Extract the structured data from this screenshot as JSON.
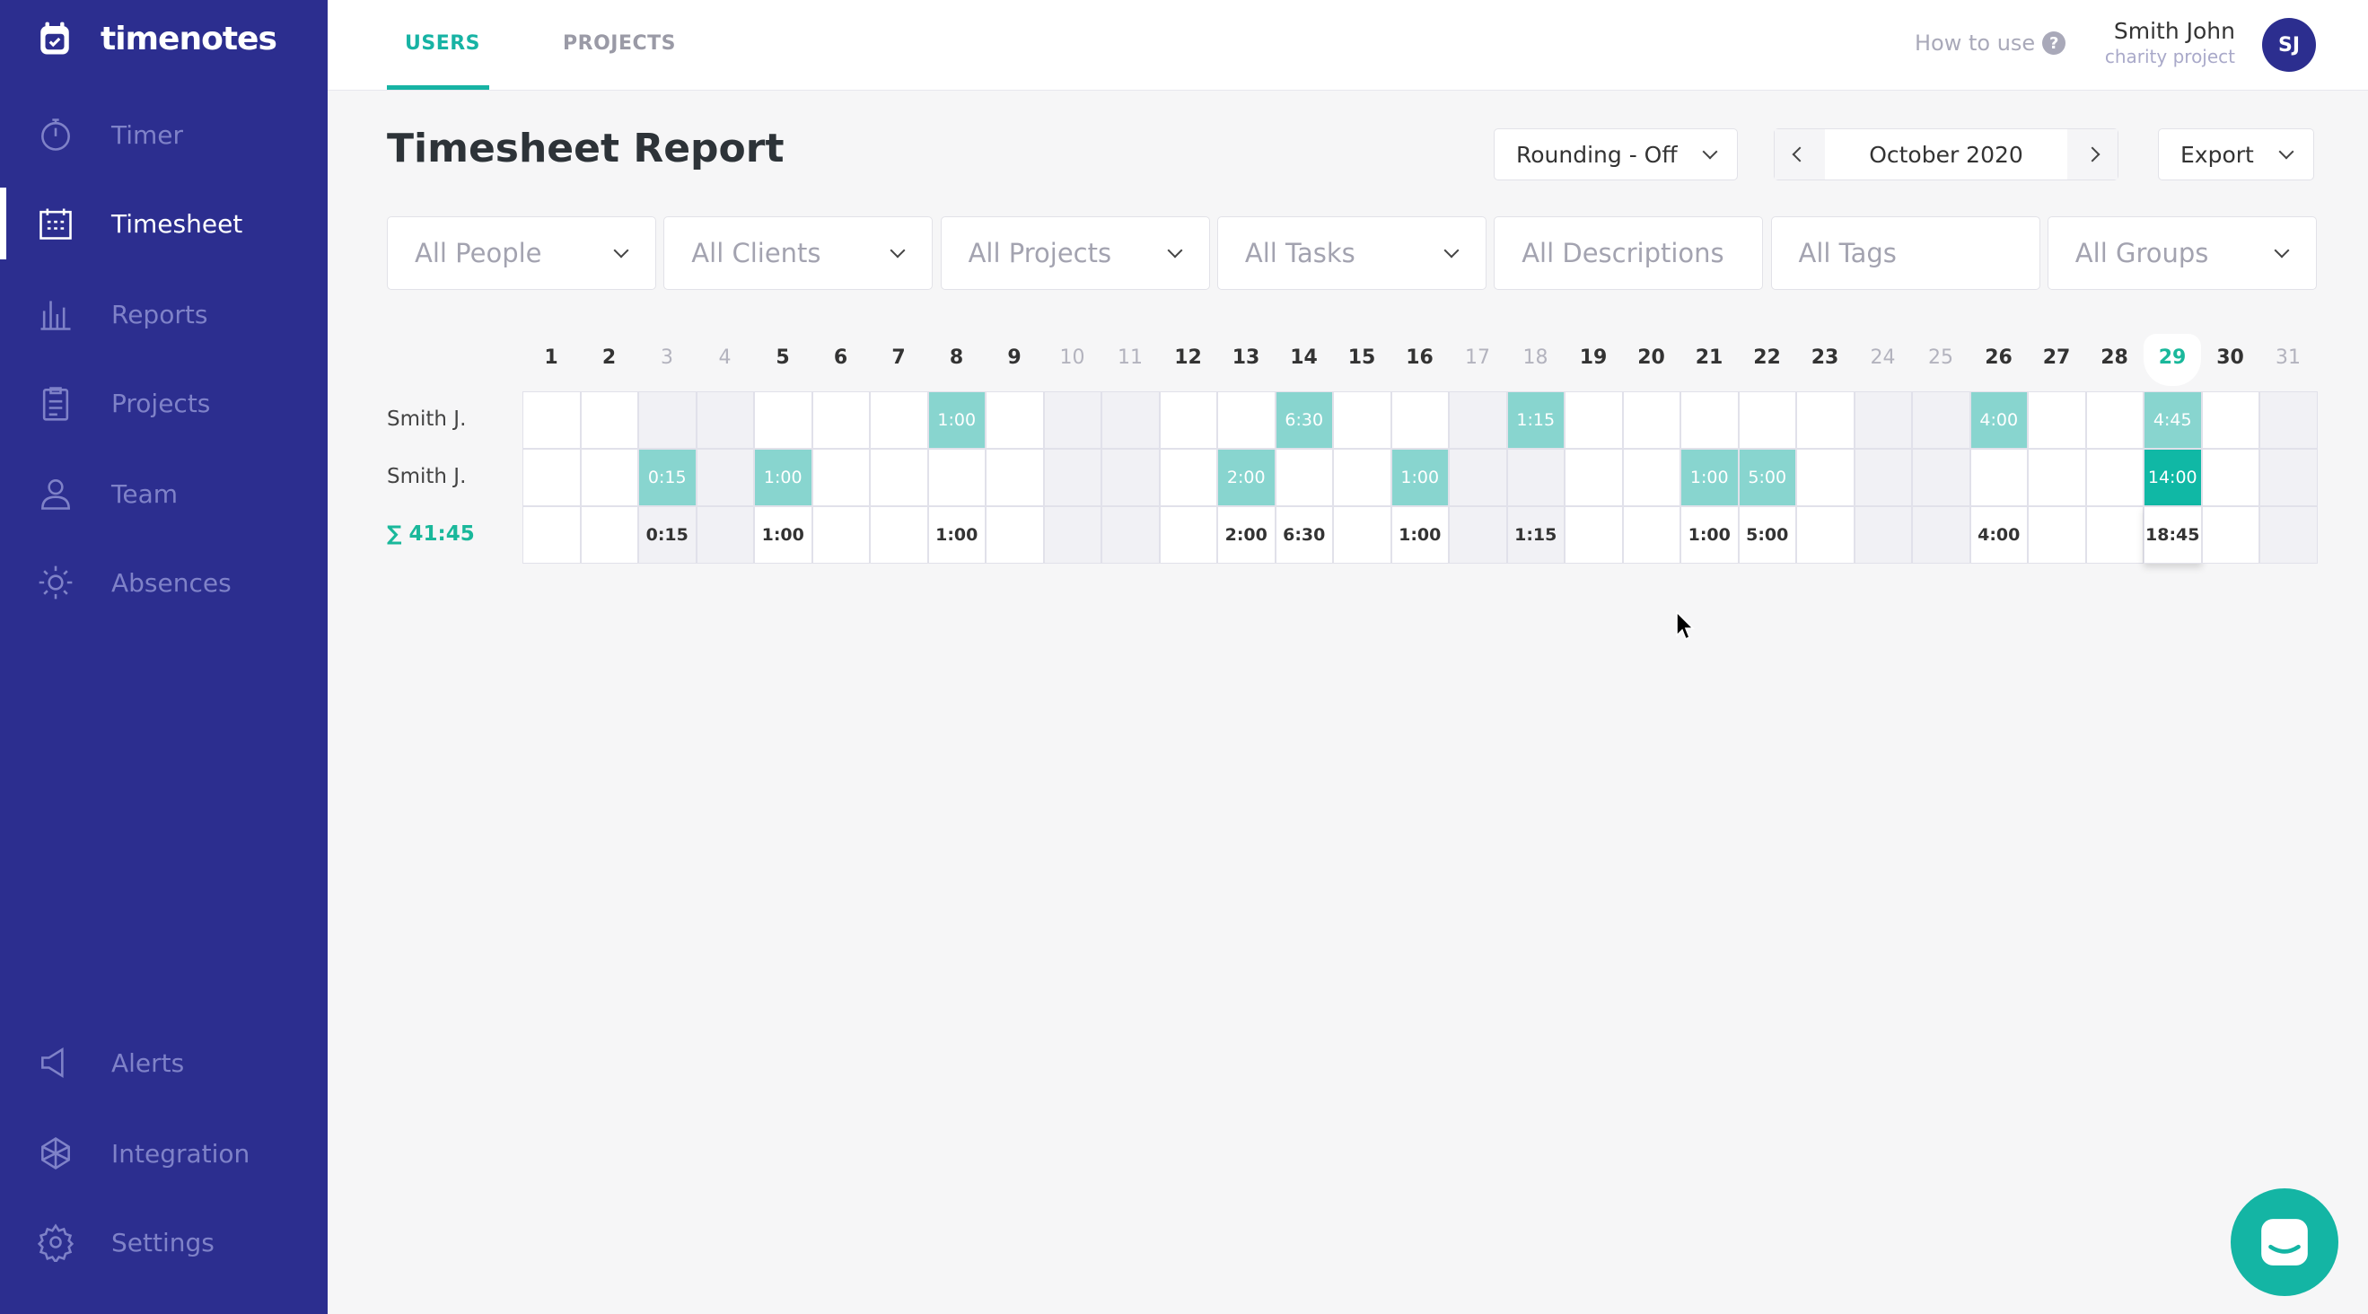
{
  "app": {
    "name": "timenotes"
  },
  "sidebar": {
    "items": [
      {
        "label": "Timer",
        "icon": "stopwatch-icon"
      },
      {
        "label": "Timesheet",
        "icon": "calendar-grid-icon",
        "active": true
      },
      {
        "label": "Reports",
        "icon": "bar-chart-icon"
      },
      {
        "label": "Projects",
        "icon": "clipboard-icon"
      },
      {
        "label": "Team",
        "icon": "user-icon"
      },
      {
        "label": "Absences",
        "icon": "sun-icon"
      },
      {
        "label": "Alerts",
        "icon": "megaphone-icon"
      },
      {
        "label": "Integration",
        "icon": "network-icon"
      },
      {
        "label": "Settings",
        "icon": "gear-icon"
      }
    ]
  },
  "header": {
    "tabs": [
      {
        "label": "USERS",
        "active": true
      },
      {
        "label": "PROJECTS"
      }
    ],
    "help": "How to use",
    "user_name": "Smith John",
    "user_project": "charity project",
    "avatar_initials": "SJ"
  },
  "main": {
    "title": "Timesheet Report",
    "rounding": "Rounding - Off",
    "month": "October 2020",
    "export": "Export",
    "filters": [
      {
        "label": "All People",
        "dropdown": true
      },
      {
        "label": "All Clients",
        "dropdown": true
      },
      {
        "label": "All Projects",
        "dropdown": true
      },
      {
        "label": "All Tasks",
        "dropdown": true
      },
      {
        "label": "All Descriptions",
        "dropdown": false
      },
      {
        "label": "All Tags",
        "dropdown": false
      },
      {
        "label": "All Groups",
        "dropdown": true
      }
    ]
  },
  "timesheet": {
    "days": [
      1,
      2,
      3,
      4,
      5,
      6,
      7,
      8,
      9,
      10,
      11,
      12,
      13,
      14,
      15,
      16,
      17,
      18,
      19,
      20,
      21,
      22,
      23,
      24,
      25,
      26,
      27,
      28,
      29,
      30,
      31
    ],
    "weekend_days": [
      3,
      4,
      10,
      11,
      17,
      18,
      24,
      25,
      31
    ],
    "today": 29,
    "rows": [
      {
        "name": "Smith J.",
        "entries": {
          "8": "1:00",
          "14": "6:30",
          "18": "1:15",
          "26": "4:00",
          "29": "4:45"
        }
      },
      {
        "name": "Smith J.",
        "entries": {
          "3": "0:15",
          "5": "1:00",
          "13": "2:00",
          "16": "1:00",
          "21": "1:00",
          "22": "5:00",
          "29": "14:00"
        }
      }
    ],
    "total_label": "∑ 41:45",
    "totals": {
      "3": "0:15",
      "5": "1:00",
      "8": "1:00",
      "13": "2:00",
      "14": "6:30",
      "16": "1:00",
      "18": "1:15",
      "21": "1:00",
      "22": "5:00",
      "26": "4:00",
      "29": "18:45"
    }
  },
  "colors": {
    "sidebar": "#2c2e8f",
    "accent": "#17b3a4",
    "entry": "#88d5cf",
    "entry_selected": "#10b8a5"
  }
}
